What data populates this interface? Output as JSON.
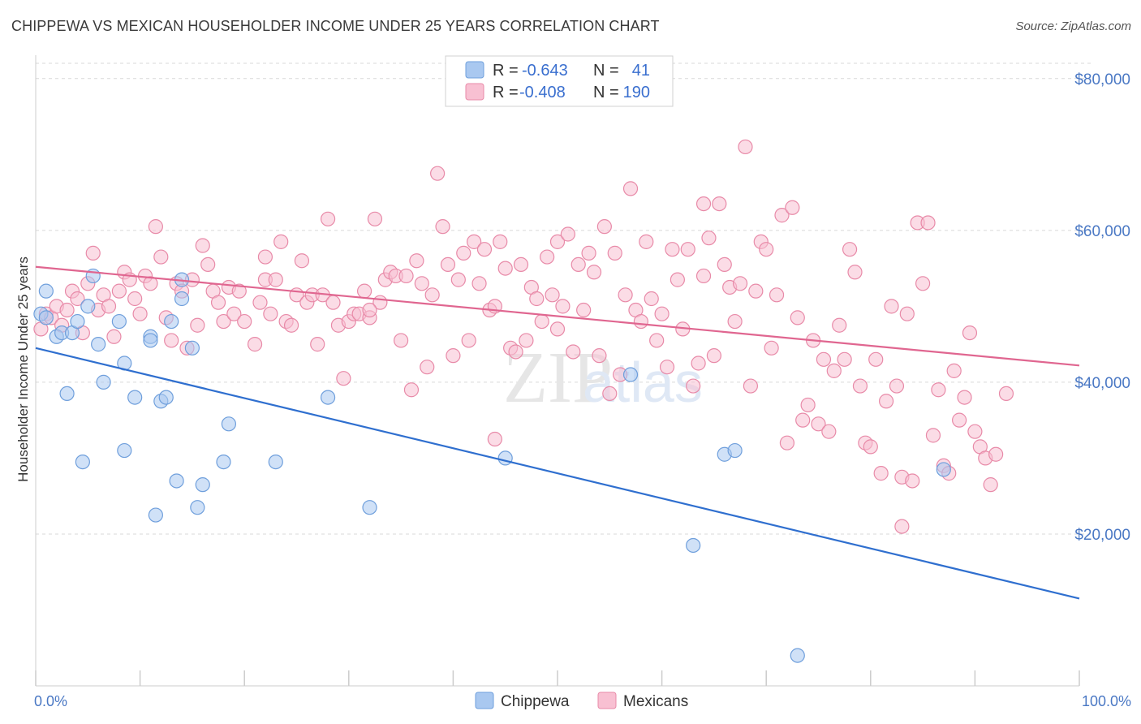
{
  "title": "CHIPPEWA VS MEXICAN HOUSEHOLDER INCOME UNDER 25 YEARS CORRELATION CHART",
  "source": "Source: ZipAtlas.com",
  "watermark": "ZIPatlas",
  "colors": {
    "chippewa_fill": "#a9c8f0",
    "chippewa_stroke": "#6f9fdc",
    "chippewa_line": "#2f6fcf",
    "mexicans_fill": "#f8c0d2",
    "mexicans_stroke": "#e88aa8",
    "mexicans_line": "#e06690",
    "tick_text": "#4a78c4",
    "grid": "#d9d9d9"
  },
  "legend": {
    "row1": {
      "r_label": "R =",
      "r_value": "-0.643",
      "n_label": "N =",
      "n_value": "41"
    },
    "row2": {
      "r_label": "R =",
      "r_value": "-0.408",
      "n_label": "N =",
      "n_value": "190"
    }
  },
  "chart_data": {
    "type": "scatter",
    "title": "CHIPPEWA VS MEXICAN HOUSEHOLDER INCOME UNDER 25 YEARS CORRELATION CHART",
    "xlabel": "",
    "ylabel": "Householder Income Under 25 years",
    "xlim": [
      0,
      100
    ],
    "ylim": [
      0,
      85000
    ],
    "x_tick_labels": [
      "0.0%",
      "100.0%"
    ],
    "y_ticks": [
      20000,
      40000,
      60000,
      80000
    ],
    "y_tick_labels": [
      "$20,000",
      "$40,000",
      "$60,000",
      "$80,000"
    ],
    "grid": true,
    "legend_position": "top-center",
    "series": [
      {
        "name": "Chippewa",
        "trend": {
          "x": [
            0,
            100
          ],
          "y": [
            44500,
            11500
          ]
        },
        "points": [
          [
            0.5,
            49000
          ],
          [
            1,
            52000
          ],
          [
            1,
            48500
          ],
          [
            2,
            46000
          ],
          [
            2.5,
            46500
          ],
          [
            3,
            38500
          ],
          [
            3.5,
            46500
          ],
          [
            4,
            48000
          ],
          [
            4.5,
            29500
          ],
          [
            5,
            50000
          ],
          [
            5.5,
            54000
          ],
          [
            6,
            45000
          ],
          [
            6.5,
            40000
          ],
          [
            8,
            48000
          ],
          [
            8.5,
            42500
          ],
          [
            8.5,
            31000
          ],
          [
            9.5,
            38000
          ],
          [
            11,
            46000
          ],
          [
            11,
            45500
          ],
          [
            11.5,
            22500
          ],
          [
            12,
            37500
          ],
          [
            12.5,
            38000
          ],
          [
            13,
            48000
          ],
          [
            13.5,
            27000
          ],
          [
            14,
            53500
          ],
          [
            14,
            51000
          ],
          [
            15,
            44500
          ],
          [
            15.5,
            23500
          ],
          [
            16,
            26500
          ],
          [
            18,
            29500
          ],
          [
            18.5,
            34500
          ],
          [
            23,
            29500
          ],
          [
            28,
            38000
          ],
          [
            32,
            23500
          ],
          [
            45,
            30000
          ],
          [
            63,
            18500
          ],
          [
            66,
            30500
          ],
          [
            67,
            31000
          ],
          [
            73,
            4000
          ],
          [
            87,
            28500
          ],
          [
            57,
            41000
          ]
        ]
      },
      {
        "name": "Mexicans",
        "trend": {
          "x": [
            0,
            100
          ],
          "y": [
            55200,
            42200
          ]
        },
        "points": [
          [
            0.5,
            47000
          ],
          [
            1,
            49000
          ],
          [
            1.5,
            48500
          ],
          [
            2,
            50000
          ],
          [
            2.5,
            47500
          ],
          [
            3,
            49500
          ],
          [
            3.5,
            52000
          ],
          [
            4,
            51000
          ],
          [
            4.5,
            46500
          ],
          [
            5,
            53000
          ],
          [
            5.5,
            57000
          ],
          [
            6,
            49500
          ],
          [
            6.5,
            51500
          ],
          [
            7,
            50000
          ],
          [
            7.5,
            46000
          ],
          [
            8,
            52000
          ],
          [
            8.5,
            54500
          ],
          [
            9,
            53500
          ],
          [
            9.5,
            51000
          ],
          [
            10,
            49000
          ],
          [
            10.5,
            54000
          ],
          [
            11,
            53000
          ],
          [
            11.5,
            60500
          ],
          [
            12,
            56500
          ],
          [
            12.5,
            48500
          ],
          [
            13,
            45500
          ],
          [
            13.5,
            53000
          ],
          [
            14,
            52000
          ],
          [
            14.5,
            44500
          ],
          [
            15,
            53500
          ],
          [
            15.5,
            47500
          ],
          [
            16,
            58000
          ],
          [
            16.5,
            55500
          ],
          [
            17,
            52000
          ],
          [
            17.5,
            50500
          ],
          [
            18,
            48000
          ],
          [
            18.5,
            52500
          ],
          [
            19,
            49000
          ],
          [
            19.5,
            52000
          ],
          [
            20,
            48000
          ],
          [
            21,
            45000
          ],
          [
            21.5,
            50500
          ],
          [
            22,
            53500
          ],
          [
            22.5,
            49000
          ],
          [
            23,
            53500
          ],
          [
            23.5,
            58500
          ],
          [
            24,
            48000
          ],
          [
            24.5,
            47500
          ],
          [
            25,
            51500
          ],
          [
            25.5,
            56000
          ],
          [
            26,
            50500
          ],
          [
            26.5,
            51500
          ],
          [
            27,
            45000
          ],
          [
            27.5,
            51500
          ],
          [
            28,
            61500
          ],
          [
            28.5,
            50500
          ],
          [
            29,
            47500
          ],
          [
            29.5,
            40500
          ],
          [
            30,
            48000
          ],
          [
            30.5,
            49000
          ],
          [
            31,
            49000
          ],
          [
            31.5,
            52000
          ],
          [
            32,
            48500
          ],
          [
            32.5,
            61500
          ],
          [
            33,
            50500
          ],
          [
            33.5,
            53500
          ],
          [
            34,
            54500
          ],
          [
            34.5,
            54000
          ],
          [
            35,
            45500
          ],
          [
            35.5,
            54000
          ],
          [
            36,
            39000
          ],
          [
            36.5,
            56000
          ],
          [
            37,
            53000
          ],
          [
            37.5,
            42000
          ],
          [
            38,
            51500
          ],
          [
            38.5,
            67500
          ],
          [
            39,
            60500
          ],
          [
            39.5,
            55500
          ],
          [
            40,
            43500
          ],
          [
            40.5,
            53500
          ],
          [
            41,
            57000
          ],
          [
            41.5,
            45500
          ],
          [
            42,
            58500
          ],
          [
            42.5,
            53000
          ],
          [
            43,
            57500
          ],
          [
            43.5,
            49500
          ],
          [
            44,
            50000
          ],
          [
            44.5,
            58500
          ],
          [
            45,
            55000
          ],
          [
            45.5,
            44500
          ],
          [
            46,
            44000
          ],
          [
            46.5,
            55500
          ],
          [
            47,
            45500
          ],
          [
            47.5,
            52500
          ],
          [
            48,
            51000
          ],
          [
            48.5,
            48000
          ],
          [
            49,
            56500
          ],
          [
            49.5,
            51500
          ],
          [
            50,
            58500
          ],
          [
            50.5,
            50000
          ],
          [
            51,
            59500
          ],
          [
            51.5,
            44000
          ],
          [
            52,
            55500
          ],
          [
            52.5,
            49500
          ],
          [
            53,
            57000
          ],
          [
            53.5,
            54500
          ],
          [
            54,
            43500
          ],
          [
            54.5,
            60500
          ],
          [
            55,
            38500
          ],
          [
            55.5,
            57000
          ],
          [
            56,
            41000
          ],
          [
            56.5,
            51500
          ],
          [
            57,
            65500
          ],
          [
            57.5,
            49500
          ],
          [
            58,
            48000
          ],
          [
            58.5,
            58500
          ],
          [
            59,
            51000
          ],
          [
            59.5,
            45500
          ],
          [
            60,
            49000
          ],
          [
            60.5,
            42000
          ],
          [
            61,
            57500
          ],
          [
            61.5,
            53500
          ],
          [
            62,
            47000
          ],
          [
            62.5,
            57500
          ],
          [
            63,
            39500
          ],
          [
            63.5,
            42500
          ],
          [
            64,
            63500
          ],
          [
            64.5,
            59000
          ],
          [
            65,
            43500
          ],
          [
            65.5,
            63500
          ],
          [
            66,
            55500
          ],
          [
            66.5,
            52500
          ],
          [
            67,
            48000
          ],
          [
            67.5,
            53000
          ],
          [
            68,
            71000
          ],
          [
            68.5,
            39500
          ],
          [
            69,
            52000
          ],
          [
            69.5,
            58500
          ],
          [
            70,
            57500
          ],
          [
            70.5,
            44500
          ],
          [
            71,
            51500
          ],
          [
            71.5,
            62000
          ],
          [
            72,
            32000
          ],
          [
            72.5,
            63000
          ],
          [
            73,
            48500
          ],
          [
            73.5,
            35000
          ],
          [
            74,
            37000
          ],
          [
            74.5,
            45500
          ],
          [
            75,
            34500
          ],
          [
            75.5,
            43000
          ],
          [
            76,
            33500
          ],
          [
            76.5,
            41500
          ],
          [
            77,
            47500
          ],
          [
            77.5,
            43000
          ],
          [
            78,
            57500
          ],
          [
            78.5,
            54500
          ],
          [
            79,
            39500
          ],
          [
            79.5,
            32000
          ],
          [
            80,
            31500
          ],
          [
            80.5,
            43000
          ],
          [
            81,
            28000
          ],
          [
            81.5,
            37500
          ],
          [
            82,
            50000
          ],
          [
            82.5,
            39500
          ],
          [
            83,
            27500
          ],
          [
            83.5,
            49000
          ],
          [
            84,
            27000
          ],
          [
            84.5,
            61000
          ],
          [
            85,
            53000
          ],
          [
            85.5,
            61000
          ],
          [
            86,
            33000
          ],
          [
            86.5,
            39000
          ],
          [
            87,
            29000
          ],
          [
            87.5,
            28000
          ],
          [
            88,
            41500
          ],
          [
            88.5,
            35000
          ],
          [
            89,
            38000
          ],
          [
            89.5,
            46500
          ],
          [
            90,
            33500
          ],
          [
            90.5,
            31500
          ],
          [
            91,
            30000
          ],
          [
            91.5,
            26500
          ],
          [
            92,
            30500
          ],
          [
            93,
            38500
          ],
          [
            64,
            54000
          ],
          [
            44,
            32500
          ],
          [
            50,
            47000
          ],
          [
            83,
            21000
          ],
          [
            32,
            49500
          ],
          [
            22,
            56500
          ]
        ]
      }
    ]
  }
}
